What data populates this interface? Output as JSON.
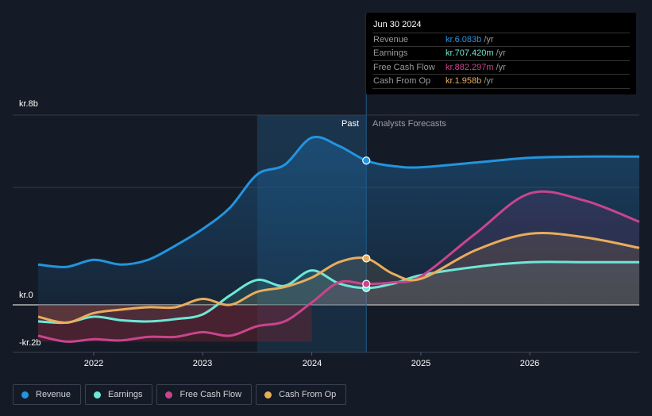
{
  "tooltip": {
    "date": "Jun 30 2024",
    "rows": [
      {
        "label": "Revenue",
        "value": "kr.6.083b",
        "unit": "/yr",
        "color": "#2394df"
      },
      {
        "label": "Earnings",
        "value": "kr.707.420m",
        "unit": "/yr",
        "color": "#6ee7d5"
      },
      {
        "label": "Free Cash Flow",
        "value": "kr.882.297m",
        "unit": "/yr",
        "color": "#c9448e"
      },
      {
        "label": "Cash From Op",
        "value": "kr.1.958b",
        "unit": "/yr",
        "color": "#e8ad5c"
      }
    ]
  },
  "sections": {
    "past": "Past",
    "forecast": "Analysts Forecasts"
  },
  "legend": [
    {
      "label": "Revenue",
      "color": "#2394df"
    },
    {
      "label": "Earnings",
      "color": "#6ee7d5"
    },
    {
      "label": "Free Cash Flow",
      "color": "#c9448e"
    },
    {
      "label": "Cash From Op",
      "color": "#e8ad5c"
    }
  ],
  "chart_data": {
    "type": "line",
    "title": "",
    "xlabel": "",
    "ylabel": "",
    "unit": "kr (billions)",
    "y_tick_labels": [
      {
        "value": 8,
        "label": "kr.8b"
      },
      {
        "value": 0,
        "label": "kr.0"
      },
      {
        "value": -2,
        "label": "-kr.2b"
      }
    ],
    "x_tick_labels": [
      {
        "value": 2022,
        "label": "2022"
      },
      {
        "value": 2023,
        "label": "2023"
      },
      {
        "value": 2024,
        "label": "2024"
      },
      {
        "value": 2025,
        "label": "2025"
      },
      {
        "value": 2026,
        "label": "2026"
      }
    ],
    "xlim": [
      2021.5,
      2027.0
    ],
    "ylim": [
      -2,
      8
    ],
    "gridlines": [
      8,
      4.95,
      0
    ],
    "past_region": [
      2023.5,
      2024.5
    ],
    "highlight_x": 2024.5,
    "series": [
      {
        "name": "Revenue",
        "color": "#2394df",
        "x": [
          2021.5,
          2021.75,
          2022.0,
          2022.25,
          2022.5,
          2022.75,
          2023.0,
          2023.25,
          2023.5,
          2023.75,
          2024.0,
          2024.25,
          2024.5,
          2024.75,
          2025.0,
          2025.5,
          2026.0,
          2026.5,
          2027.0
        ],
        "y": [
          1.7,
          1.6,
          1.9,
          1.7,
          1.9,
          2.5,
          3.2,
          4.1,
          5.5,
          5.9,
          7.05,
          6.7,
          6.083,
          5.85,
          5.8,
          6.0,
          6.2,
          6.25,
          6.25
        ]
      },
      {
        "name": "Earnings",
        "color": "#6ee7d5",
        "x": [
          2021.5,
          2021.75,
          2022.0,
          2022.25,
          2022.5,
          2022.75,
          2023.0,
          2023.25,
          2023.5,
          2023.75,
          2024.0,
          2024.25,
          2024.5,
          2024.75,
          2025.0,
          2025.5,
          2026.0,
          2026.5,
          2027.0
        ],
        "y": [
          -0.7,
          -0.75,
          -0.5,
          -0.65,
          -0.7,
          -0.6,
          -0.4,
          0.4,
          1.05,
          0.8,
          1.45,
          0.9,
          0.707,
          0.9,
          1.25,
          1.6,
          1.8,
          1.8,
          1.8
        ]
      },
      {
        "name": "Free Cash Flow",
        "color": "#c9448e",
        "x": [
          2021.5,
          2021.75,
          2022.0,
          2022.25,
          2022.5,
          2022.75,
          2023.0,
          2023.25,
          2023.5,
          2023.75,
          2024.0,
          2024.25,
          2024.5,
          2024.75,
          2025.0,
          2025.5,
          2026.0,
          2026.5,
          2027.0
        ],
        "y": [
          -1.3,
          -1.55,
          -1.45,
          -1.5,
          -1.35,
          -1.35,
          -1.15,
          -1.3,
          -0.9,
          -0.7,
          0.1,
          0.95,
          0.882,
          0.95,
          1.2,
          3.0,
          4.7,
          4.4,
          3.5
        ]
      },
      {
        "name": "Cash From Op",
        "color": "#e8ad5c",
        "x": [
          2021.5,
          2021.75,
          2022.0,
          2022.25,
          2022.5,
          2022.75,
          2023.0,
          2023.25,
          2023.5,
          2023.75,
          2024.0,
          2024.25,
          2024.5,
          2024.75,
          2025.0,
          2025.5,
          2026.0,
          2026.5,
          2027.0
        ],
        "y": [
          -0.5,
          -0.75,
          -0.35,
          -0.2,
          -0.1,
          -0.1,
          0.25,
          0.0,
          0.55,
          0.75,
          1.15,
          1.8,
          1.958,
          1.3,
          1.1,
          2.3,
          3.0,
          2.85,
          2.4
        ]
      }
    ]
  }
}
